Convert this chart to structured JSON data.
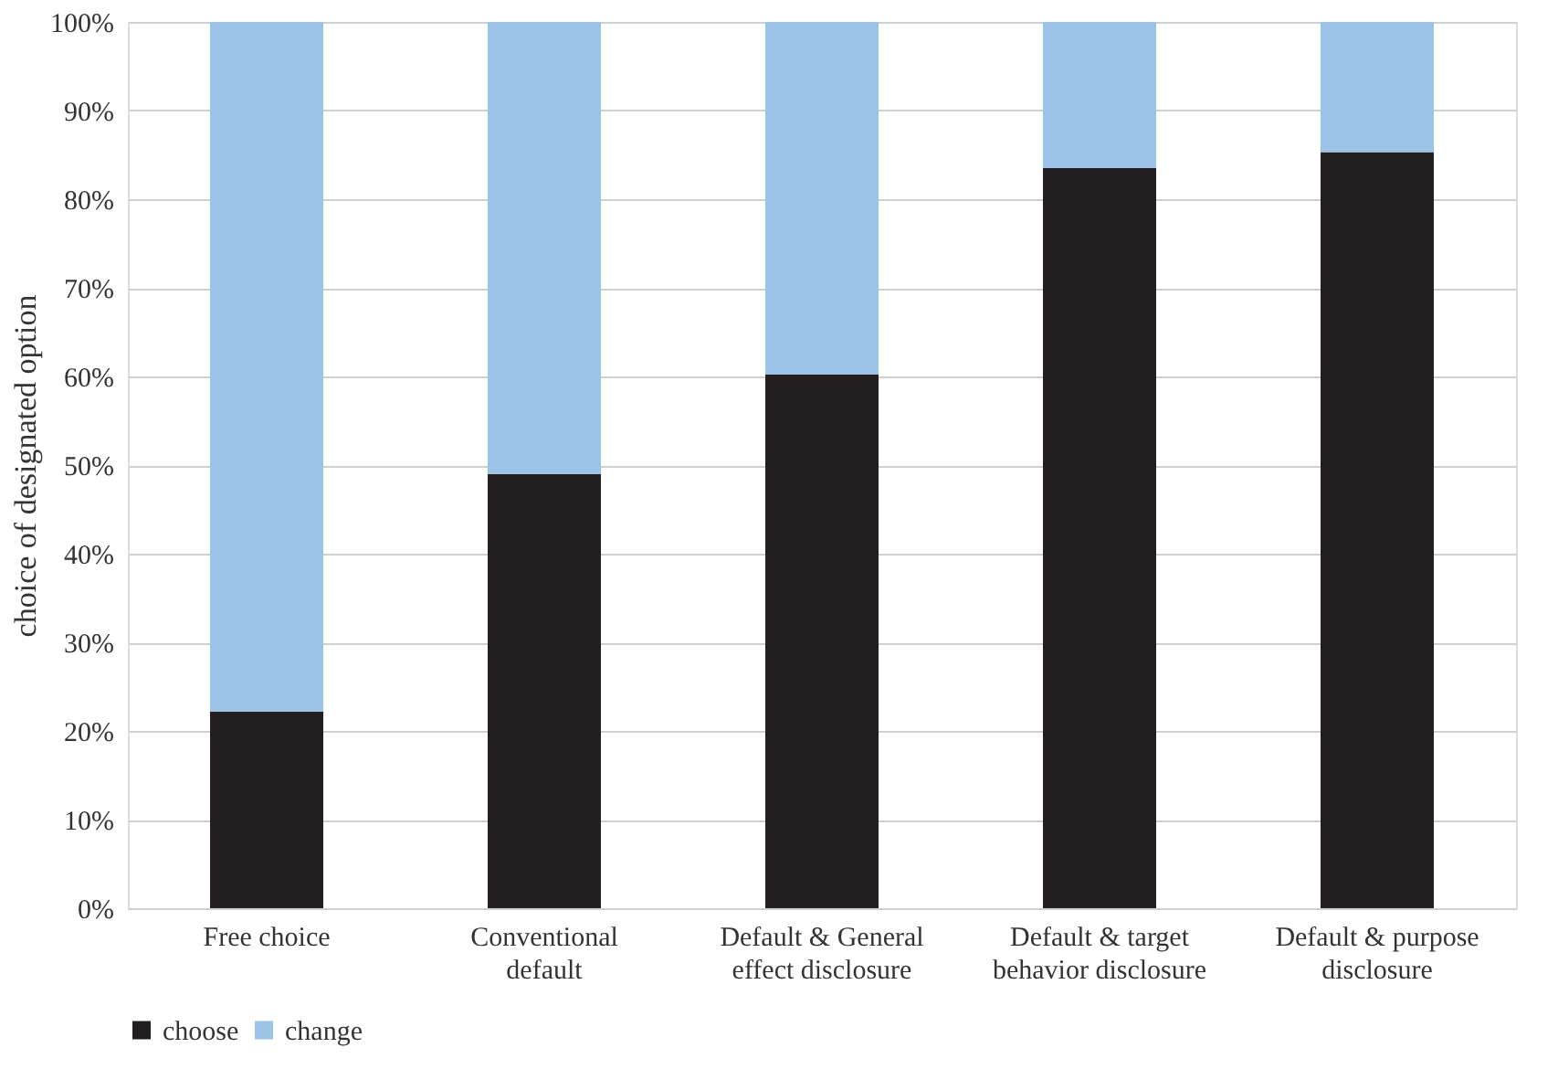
{
  "chart_data": {
    "type": "bar",
    "stacked": true,
    "ylabel": "choice of designated option",
    "categories": [
      "Free choice",
      "Conventional default",
      "Default & General effect disclosure",
      "Default & target behavior disclosure",
      "Default & purpose disclosure"
    ],
    "series": [
      {
        "name": "choose",
        "color": "#231f20",
        "values": [
          22.2,
          49.0,
          60.2,
          83.5,
          85.3
        ]
      },
      {
        "name": "change",
        "color": "#9dc3e6",
        "values": [
          77.8,
          51.0,
          39.8,
          16.5,
          14.7
        ]
      }
    ],
    "ylim": [
      0,
      100
    ],
    "yticks": [
      {
        "value": 0,
        "label": "0%"
      },
      {
        "value": 10,
        "label": "10%"
      },
      {
        "value": 20,
        "label": "20%"
      },
      {
        "value": 30,
        "label": "30%"
      },
      {
        "value": 40,
        "label": "40%"
      },
      {
        "value": 50,
        "label": "50%"
      },
      {
        "value": 60,
        "label": "60%"
      },
      {
        "value": 70,
        "label": "70%"
      },
      {
        "value": 80,
        "label": "80%"
      },
      {
        "value": 90,
        "label": "90%"
      },
      {
        "value": 100,
        "label": "100%"
      }
    ],
    "grid": "y",
    "legend": "bottom"
  }
}
